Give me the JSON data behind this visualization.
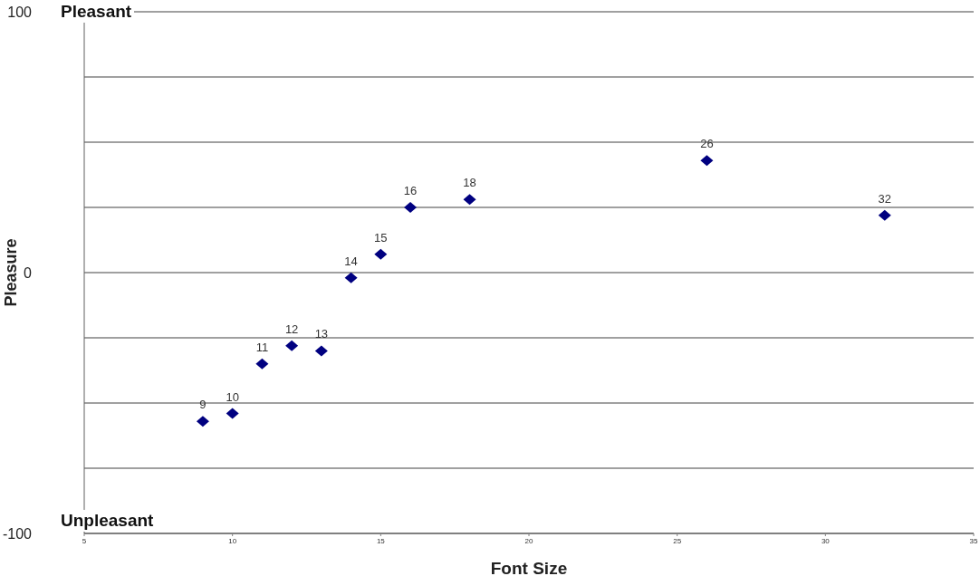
{
  "chart_data": {
    "type": "scatter",
    "xlabel": "Font Size",
    "ylabel": "Pleasure",
    "x": [
      9,
      10,
      11,
      12,
      13,
      14,
      15,
      16,
      18,
      26,
      32
    ],
    "series": [
      {
        "color": "#000080",
        "values": [
          -57,
          -54,
          -35,
          -28,
          -30,
          -2,
          7,
          25,
          28,
          43,
          22
        ]
      }
    ],
    "xlim": [
      5,
      35
    ],
    "xticks": [
      5,
      10,
      15,
      20,
      25,
      30,
      35
    ],
    "ylim": [
      -100,
      100
    ],
    "yticks": [
      -100,
      {
        "value": -75,
        "label": null
      },
      {
        "value": -50,
        "label": null
      },
      {
        "value": -25,
        "label": null
      },
      0,
      {
        "value": 25,
        "label": null
      },
      {
        "value": 50,
        "label": null
      },
      {
        "value": 75,
        "label": null
      },
      100
    ],
    "annotations": [
      "Pleasant",
      "Unpleasant",
      {
        "text": "9",
        "x": 9,
        "y": -57
      },
      {
        "text": "10",
        "x": 10,
        "y": -54
      },
      {
        "text": "11",
        "x": 11,
        "y": -35
      },
      {
        "text": "12",
        "x": 12,
        "y": -28
      },
      {
        "text": "13",
        "x": 13,
        "y": -30
      },
      {
        "text": "14",
        "x": 14,
        "y": -2
      },
      {
        "text": "15",
        "x": 15,
        "y": 7
      },
      {
        "text": "16",
        "x": 16,
        "y": 25
      },
      {
        "text": "18",
        "x": 18,
        "y": 28
      },
      {
        "text": "26",
        "x": 26,
        "y": 43
      },
      {
        "text": "32",
        "x": 32,
        "y": 22
      }
    ],
    "grid": "y",
    "marker": "diamond",
    "legend": false
  }
}
